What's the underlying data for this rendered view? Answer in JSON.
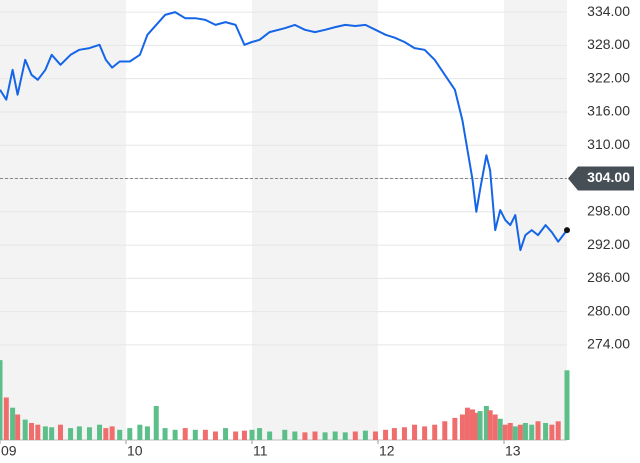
{
  "chart_data": {
    "type": "line",
    "x": [
      9.0,
      9.05,
      9.1,
      9.14,
      9.2,
      9.25,
      9.3,
      9.36,
      9.41,
      9.48,
      9.56,
      9.63,
      9.71,
      9.79,
      9.84,
      9.89,
      9.95,
      10.03,
      10.11,
      10.17,
      10.24,
      10.31,
      10.39,
      10.47,
      10.55,
      10.63,
      10.71,
      10.79,
      10.87,
      10.94,
      11.0,
      11.06,
      11.14,
      11.26,
      11.34,
      11.42,
      11.5,
      11.58,
      11.66,
      11.74,
      11.82,
      11.9,
      11.98,
      12.06,
      12.13,
      12.21,
      12.29,
      12.37,
      12.45,
      12.53,
      12.61,
      12.67,
      12.71,
      12.75,
      12.78,
      12.81,
      12.86,
      12.89,
      12.93,
      12.97,
      13.01,
      13.05,
      13.09,
      13.13,
      13.17,
      13.22,
      13.27,
      13.33,
      13.38,
      13.43,
      13.5
    ],
    "xlim": [
      9,
      13.5
    ],
    "xticks": [
      {
        "value": 9,
        "label": "09"
      },
      {
        "value": 10,
        "label": "10"
      },
      {
        "value": 11,
        "label": "11"
      },
      {
        "value": 12,
        "label": "12"
      },
      {
        "value": 13,
        "label": "13"
      }
    ],
    "ylim": [
      272,
      336
    ],
    "yticks": [
      {
        "value": 334,
        "label": "334.00"
      },
      {
        "value": 328,
        "label": "328.00"
      },
      {
        "value": 322,
        "label": "322.00"
      },
      {
        "value": 316,
        "label": "316.00"
      },
      {
        "value": 310,
        "label": "310.00"
      },
      {
        "value": 304,
        "label": "304.00"
      },
      {
        "value": 298,
        "label": "298.00"
      },
      {
        "value": 292,
        "label": "292.00"
      },
      {
        "value": 286,
        "label": "286.00"
      },
      {
        "value": 280,
        "label": "280.00"
      },
      {
        "value": 274,
        "label": "274.00"
      }
    ],
    "grid": true,
    "shaded_bands": true,
    "series": [
      {
        "color": "#1565e8",
        "values": [
          320.0,
          318.2,
          323.6,
          319.1,
          325.4,
          322.7,
          321.8,
          323.6,
          326.3,
          324.5,
          326.3,
          327.2,
          327.5,
          328.1,
          325.4,
          324.0,
          325.1,
          325.1,
          326.3,
          329.9,
          331.7,
          333.5,
          334.0,
          332.9,
          332.9,
          332.6,
          331.7,
          332.2,
          331.7,
          328.1,
          328.6,
          329.0,
          330.4,
          331.1,
          331.7,
          330.8,
          330.4,
          330.8,
          331.3,
          331.7,
          331.5,
          331.7,
          330.8,
          329.9,
          329.4,
          328.6,
          327.5,
          327.2,
          325.4,
          322.7,
          320.0,
          314.5,
          309.1,
          303.8,
          298.0,
          302.0,
          308.2,
          305.5,
          294.7,
          298.3,
          296.5,
          295.6,
          297.4,
          291.1,
          293.8,
          294.7,
          293.8,
          295.6,
          294.3,
          292.6,
          294.7
        ]
      }
    ],
    "reference_line": {
      "value": 304,
      "label": "304.00"
    },
    "volume": {
      "ylim": [
        0,
        100
      ],
      "up_color": "#5cbf8a",
      "down_color": "#ef6d6d",
      "values": [
        94,
        50,
        38,
        30,
        24,
        20,
        18,
        16,
        15,
        18,
        14,
        16,
        15,
        18,
        14,
        16,
        12,
        14,
        18,
        16,
        40,
        14,
        12,
        14,
        12,
        12,
        10,
        14,
        10,
        11,
        12,
        14,
        10,
        12,
        10,
        9,
        10,
        9,
        10,
        9,
        10,
        11,
        10,
        12,
        14,
        15,
        18,
        16,
        18,
        22,
        26,
        30,
        38,
        36,
        32,
        34,
        40,
        35,
        30,
        25,
        18,
        20,
        16,
        18,
        20,
        18,
        22,
        20,
        18,
        22,
        82
      ]
    }
  }
}
